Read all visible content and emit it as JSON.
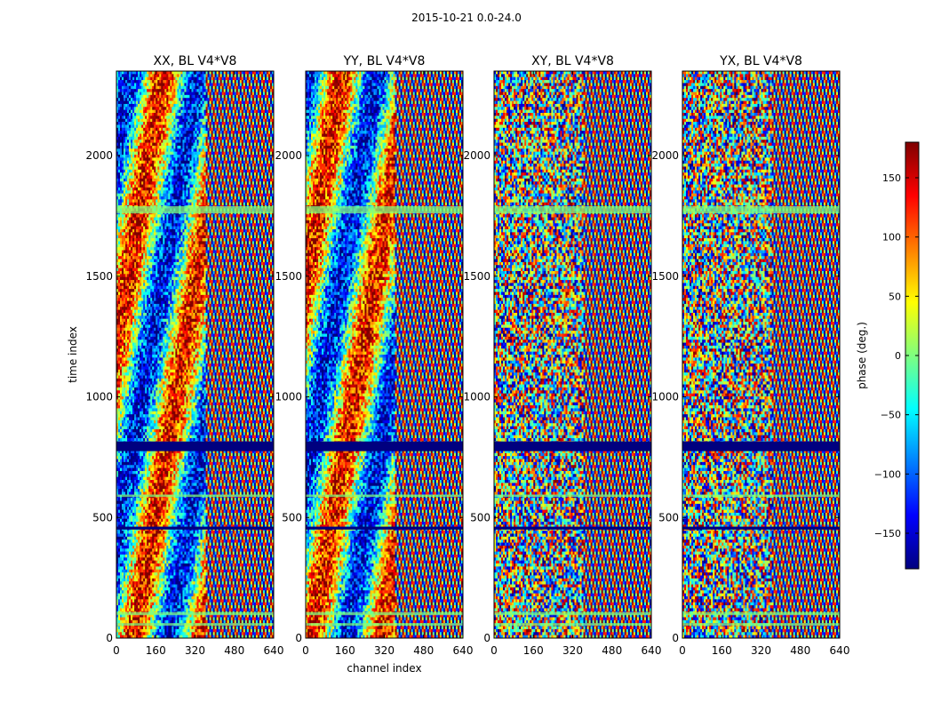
{
  "figure": {
    "suptitle": "2015-10-21 0.0-24.0"
  },
  "chart_data": [
    {
      "type": "heatmap",
      "title": "XX, BL V4*V8",
      "xlabel": "",
      "ylabel": "time index",
      "x_ticks": [
        0,
        160,
        320,
        480,
        640
      ],
      "y_ticks": [
        0,
        500,
        1000,
        1500,
        2000
      ],
      "xlim": [
        0,
        640
      ],
      "ylim": [
        0,
        2350
      ],
      "value_range": [
        -180,
        180
      ]
    },
    {
      "type": "heatmap",
      "title": "YY, BL V4*V8",
      "xlabel": "channel index",
      "ylabel": "",
      "x_ticks": [
        0,
        160,
        320,
        480,
        640
      ],
      "y_ticks": [
        0,
        500,
        1000,
        1500,
        2000
      ],
      "xlim": [
        0,
        640
      ],
      "ylim": [
        0,
        2350
      ],
      "value_range": [
        -180,
        180
      ]
    },
    {
      "type": "heatmap",
      "title": "XY, BL V4*V8",
      "xlabel": "",
      "ylabel": "",
      "x_ticks": [
        0,
        160,
        320,
        480,
        640
      ],
      "y_ticks": [
        0,
        500,
        1000,
        1500,
        2000
      ],
      "xlim": [
        0,
        640
      ],
      "ylim": [
        0,
        2350
      ],
      "value_range": [
        -180,
        180
      ]
    },
    {
      "type": "heatmap",
      "title": "YX, BL V4*V8",
      "xlabel": "",
      "ylabel": "",
      "x_ticks": [
        0,
        160,
        320,
        480,
        640
      ],
      "y_ticks": [
        0,
        500,
        1000,
        1500,
        2000
      ],
      "xlim": [
        0,
        640
      ],
      "ylim": [
        0,
        2350
      ],
      "value_range": [
        -180,
        180
      ]
    }
  ],
  "colorbar": {
    "label": "phase (deg.)",
    "ticks": [
      150,
      100,
      50,
      0,
      -50,
      -100,
      -150
    ],
    "range": [
      -180,
      180
    ],
    "colormap": "jet",
    "colors": [
      "#00007f",
      "#0000ff",
      "#007fff",
      "#00ffff",
      "#7fff7f",
      "#ffff00",
      "#ff7f00",
      "#ff0000",
      "#7f0000"
    ]
  }
}
